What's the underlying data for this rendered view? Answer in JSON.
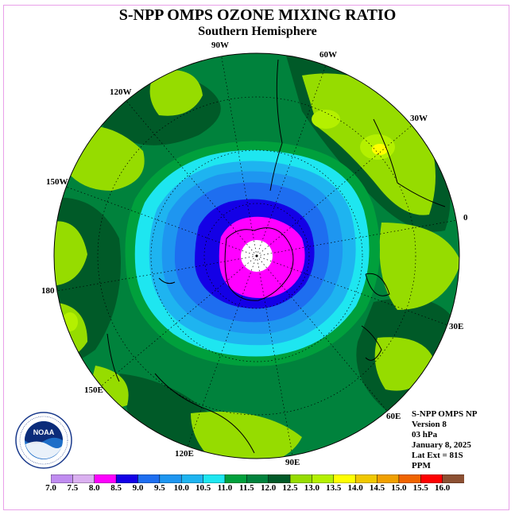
{
  "title": "S-NPP OMPS OZONE MIXING RATIO",
  "subtitle": "Southern Hemisphere",
  "longitude_labels": {
    "w90": "90W",
    "w60": "60W",
    "w30": "30W",
    "e0": "0",
    "w120": "120W",
    "w150": "150W",
    "d180": "180",
    "e30": "30E",
    "e60": "60E",
    "e90": "90E",
    "e120": "120E",
    "e150": "150E"
  },
  "info": {
    "line1": "S-NPP OMPS NP",
    "line2": "Version 8",
    "line3": "03 hPa",
    "line4": "January 8, 2025",
    "line5": "Lat Ext = 81S",
    "line6": "PPM"
  },
  "logo": {
    "text": "NOAA",
    "ring_text": "NATIONAL OCEANIC AND ATMOSPHERIC ADMINISTRATION · U.S. DEPARTMENT OF COMMERCE"
  },
  "colorbar": {
    "ticks": [
      "7.0",
      "7.5",
      "8.0",
      "8.5",
      "9.0",
      "9.5",
      "10.0",
      "10.5",
      "11.0",
      "11.5",
      "12.0",
      "12.5",
      "13.0",
      "13.5",
      "14.0",
      "14.5",
      "15.0",
      "15.5",
      "16.0"
    ],
    "colors": [
      "#c08cf0",
      "#dab0f0",
      "#ff00ff",
      "#1400e6",
      "#1e6ef0",
      "#1e96f0",
      "#1eb4f0",
      "#1ee6f0",
      "#00a03c",
      "#00823c",
      "#005a28",
      "#96dc00",
      "#b4f000",
      "#ffff00",
      "#f0c800",
      "#f0a000",
      "#f06400",
      "#ff0000",
      "#8c5032"
    ]
  },
  "chart_data": {
    "type": "heatmap",
    "title": "S-NPP OMPS OZONE MIXING RATIO",
    "subtitle": "Southern Hemisphere",
    "units": "PPM",
    "pressure_level": "03 hPa",
    "date": "January 8, 2025",
    "lat_extent": "81S",
    "value_range": [
      7.0,
      16.0
    ],
    "levels": [
      7.0,
      7.5,
      8.0,
      8.5,
      9.0,
      9.5,
      10.0,
      10.5,
      11.0,
      11.5,
      12.0,
      12.5,
      13.0,
      13.5,
      14.0,
      14.5,
      15.0,
      15.5,
      16.0
    ],
    "min_region_value": 8.0,
    "min_region_location": "over Antarctica (south pole)",
    "max_region_value": 13.0,
    "max_region_location": "mid-latitudes near 30W"
  }
}
